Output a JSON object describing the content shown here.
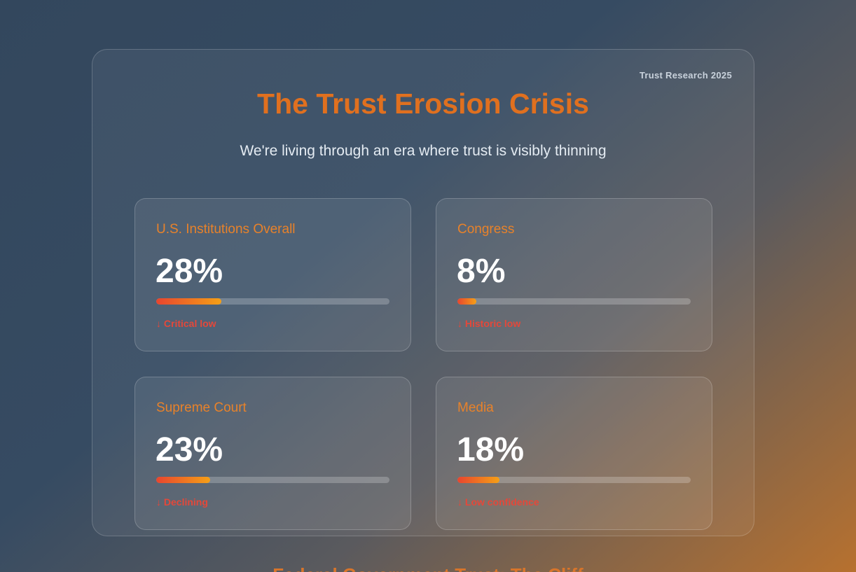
{
  "header": {
    "badge": "Trust Research 2025",
    "title": "The Trust Erosion Crisis",
    "subtitle": "We're living through an era where trust is visibly thinning"
  },
  "cards": [
    {
      "label": "U.S. Institutions Overall",
      "value": 28,
      "value_label": "28%",
      "status": "↓ Critical low"
    },
    {
      "label": "Congress",
      "value": 8,
      "value_label": "8%",
      "status": "↓ Historic low"
    },
    {
      "label": "Supreme Court",
      "value": 23,
      "value_label": "23%",
      "status": "↓ Declining"
    },
    {
      "label": "Media",
      "value": 18,
      "value_label": "18%",
      "status": "↓ Low confidence"
    }
  ],
  "next_section": {
    "title": "Federal Government Trust: The Cliff"
  }
}
